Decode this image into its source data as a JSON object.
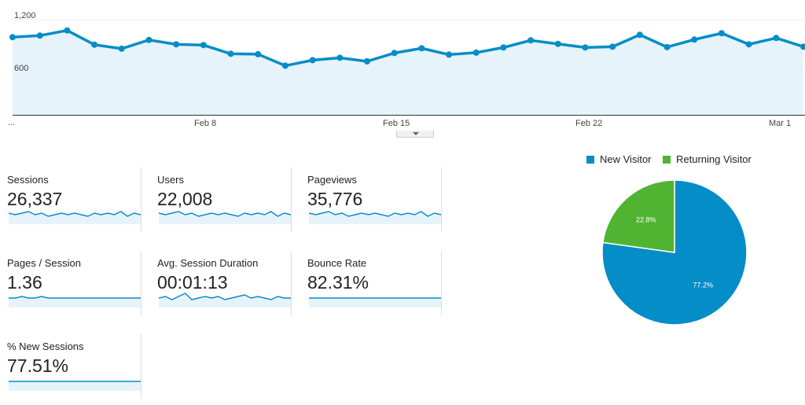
{
  "main_chart": {
    "y_ticks": [
      "1,200",
      "600"
    ],
    "x_ticks": [
      "...",
      "Feb 8",
      "Feb 15",
      "Feb 22",
      "Mar 1"
    ],
    "values": [
      980,
      1000,
      1065,
      885,
      835,
      945,
      890,
      880,
      770,
      765,
      620,
      690,
      720,
      675,
      780,
      840,
      760,
      785,
      850,
      940,
      895,
      850,
      860,
      1010,
      855,
      950,
      1030,
      890,
      970,
      860
    ],
    "ylim": [
      0,
      1350
    ],
    "line_color": "#058dc7",
    "fill_color": "#e6f3fa"
  },
  "metrics": [
    {
      "label": "Sessions",
      "value": "26,337",
      "spark": [
        6,
        5,
        6,
        7,
        5,
        6,
        4,
        5,
        6,
        5,
        6,
        5,
        4,
        6,
        5,
        6,
        5,
        7,
        4,
        6,
        5
      ]
    },
    {
      "label": "Users",
      "value": "22,008",
      "spark": [
        6,
        5,
        6,
        7,
        5,
        6,
        4,
        5,
        6,
        5,
        6,
        5,
        4,
        6,
        5,
        6,
        5,
        7,
        4,
        6,
        5
      ]
    },
    {
      "label": "Pageviews",
      "value": "35,776",
      "spark": [
        6,
        5,
        6,
        7,
        5,
        6,
        4,
        5,
        6,
        5,
        6,
        5,
        4,
        6,
        5,
        6,
        5,
        7,
        4,
        6,
        5
      ]
    },
    {
      "label": "Pages / Session",
      "value": "1.36",
      "spark": [
        5,
        5,
        6,
        5,
        5,
        6,
        5,
        5,
        5,
        5,
        5,
        5,
        5,
        5,
        5,
        5,
        5,
        5,
        5,
        5,
        5
      ]
    },
    {
      "label": "Avg. Session Duration",
      "value": "00:01:13",
      "spark": [
        5,
        6,
        4,
        6,
        8,
        4,
        5,
        6,
        5,
        6,
        4,
        5,
        6,
        7,
        5,
        6,
        5,
        4,
        6,
        5,
        5
      ]
    },
    {
      "label": "Bounce Rate",
      "value": "82.31%",
      "spark": [
        5,
        5,
        5,
        5,
        5,
        5,
        5,
        5,
        5,
        5,
        5,
        5,
        5,
        5,
        5,
        5,
        5,
        5,
        5,
        5,
        5
      ]
    },
    {
      "label": "% New Sessions",
      "value": "77.51%",
      "spark": [
        5,
        5,
        5,
        5,
        5,
        5,
        5,
        5,
        5,
        5,
        5,
        5,
        5,
        5,
        5,
        5,
        5,
        5,
        5,
        5,
        5
      ]
    }
  ],
  "pie": {
    "legend": [
      {
        "label": "New Visitor",
        "color": "#058dc7"
      },
      {
        "label": "Returning Visitor",
        "color": "#50b432"
      }
    ],
    "slices": [
      {
        "label": "New Visitor",
        "value": 77.2,
        "text": "77.2%",
        "color": "#058dc7"
      },
      {
        "label": "Returning Visitor",
        "value": 22.8,
        "text": "22.8%",
        "color": "#50b432"
      }
    ]
  }
}
